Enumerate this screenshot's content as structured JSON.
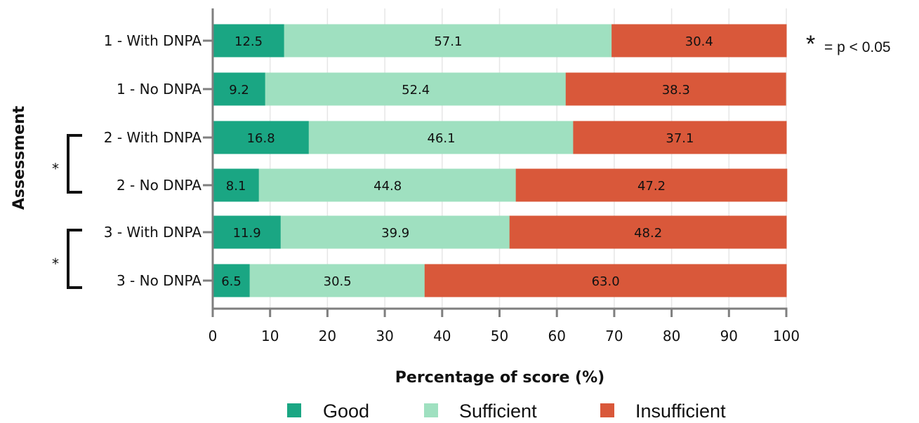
{
  "chart_data": {
    "type": "bar",
    "orientation": "horizontal",
    "stacked": true,
    "categories": [
      "1 - With DNPA",
      "1 - No DNPA",
      "2 - With DNPA",
      "2 - No DNPA",
      "3 - With DNPA",
      "3 - No DNPA"
    ],
    "series": [
      {
        "name": "Good",
        "color": "#1aa683",
        "values": [
          12.5,
          9.2,
          16.8,
          8.1,
          11.9,
          6.5
        ]
      },
      {
        "name": "Sufficient",
        "color": "#9fe0c0",
        "values": [
          57.1,
          52.4,
          46.1,
          44.8,
          39.9,
          30.5
        ]
      },
      {
        "name": "Insufficient",
        "color": "#d9583a",
        "values": [
          30.4,
          38.3,
          37.1,
          47.2,
          48.2,
          63.0
        ]
      }
    ],
    "data_labels": [
      [
        "12.5",
        "9.2",
        "16.8",
        "8.1",
        "11.9",
        "6.5"
      ],
      [
        "57.1",
        "52.4",
        "46.1",
        "44.8",
        "39.9",
        "30.5"
      ],
      [
        "30.4",
        "38.3",
        "37.1",
        "47.2",
        "48.2",
        "63.0"
      ]
    ],
    "xlabel": "Percentage of score  (%)",
    "ylabel": "Assessment",
    "xlim": [
      0,
      100
    ],
    "xticks": [
      0,
      10,
      20,
      30,
      40,
      50,
      60,
      70,
      80,
      90,
      100
    ],
    "grid": "vertical",
    "legend_position": "bottom",
    "significance": [
      {
        "categories": [
          "2 - With DNPA",
          "2 - No DNPA"
        ],
        "marker": "*"
      },
      {
        "categories": [
          "3 - With DNPA",
          "3 - No DNPA"
        ],
        "marker": "*"
      }
    ],
    "note": {
      "symbol": "*",
      "text": "= p < 0.05"
    }
  }
}
